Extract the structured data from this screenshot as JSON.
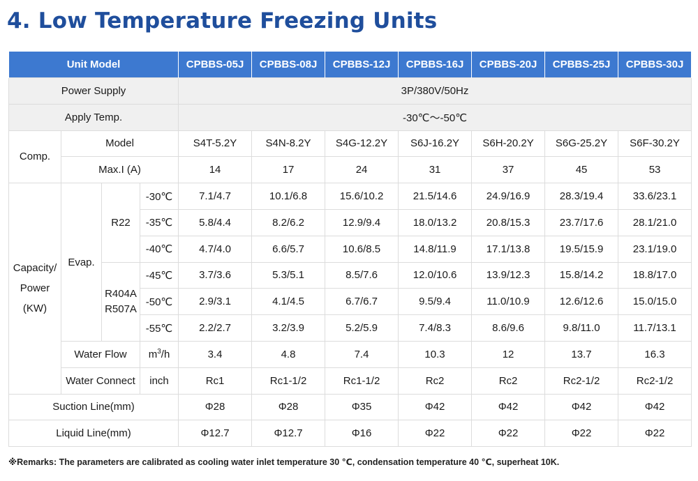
{
  "title": "4. Low Temperature Freezing Units",
  "header": {
    "unit_model": "Unit Model",
    "models": [
      "CPBBS-05J",
      "CPBBS-08J",
      "CPBBS-12J",
      "CPBBS-16J",
      "CPBBS-20J",
      "CPBBS-25J",
      "CPBBS-30J"
    ]
  },
  "power_supply": {
    "label": "Power Supply",
    "value": "3P/380V/50Hz"
  },
  "apply_temp": {
    "label": "Apply Temp.",
    "value": "-30℃～-50℃"
  },
  "comp": {
    "label": "Comp.",
    "model_label": "Model",
    "models": [
      "S4T-5.2Y",
      "S4N-8.2Y",
      "S4G-12.2Y",
      "S6J-16.2Y",
      "S6H-20.2Y",
      "S6G-25.2Y",
      "S6F-30.2Y"
    ],
    "maxi_label": "Max.I (A)",
    "maxi": [
      "14",
      "17",
      "24",
      "31",
      "37",
      "45",
      "53"
    ]
  },
  "capacity": {
    "label_line1": "Capacity/",
    "label_line2": "Power",
    "label_line3": "(KW)",
    "evap_label": "Evap.",
    "r22_label": "R22",
    "r404_line1": "R404A",
    "r404_line2": "R507A",
    "rows": [
      {
        "temp": "-30℃",
        "values": [
          "7.1/4.7",
          "10.1/6.8",
          "15.6/10.2",
          "21.5/14.6",
          "24.9/16.9",
          "28.3/19.4",
          "33.6/23.1"
        ]
      },
      {
        "temp": "-35℃",
        "values": [
          "5.8/4.4",
          "8.2/6.2",
          "12.9/9.4",
          "18.0/13.2",
          "20.8/15.3",
          "23.7/17.6",
          "28.1/21.0"
        ]
      },
      {
        "temp": "-40℃",
        "values": [
          "4.7/4.0",
          "6.6/5.7",
          "10.6/8.5",
          "14.8/11.9",
          "17.1/13.8",
          "19.5/15.9",
          "23.1/19.0"
        ]
      },
      {
        "temp": "-45℃",
        "values": [
          "3.7/3.6",
          "5.3/5.1",
          "8.5/7.6",
          "12.0/10.6",
          "13.9/12.3",
          "15.8/14.2",
          "18.8/17.0"
        ]
      },
      {
        "temp": "-50℃",
        "values": [
          "2.9/3.1",
          "4.1/4.5",
          "6.7/6.7",
          "9.5/9.4",
          "11.0/10.9",
          "12.6/12.6",
          "15.0/15.0"
        ]
      },
      {
        "temp": "-55℃",
        "values": [
          "2.2/2.7",
          "3.2/3.9",
          "5.2/5.9",
          "7.4/8.3",
          "8.6/9.6",
          "9.8/11.0",
          "11.7/13.1"
        ]
      }
    ]
  },
  "water_flow": {
    "label": "Water Flow",
    "unit_base": "m",
    "unit_sup": "3",
    "unit_tail": "/h",
    "values": [
      "3.4",
      "4.8",
      "7.4",
      "10.3",
      "12",
      "13.7",
      "16.3"
    ]
  },
  "water_connect": {
    "label": "Water Connect",
    "unit": "inch",
    "values": [
      "Rc1",
      "Rc1-1/2",
      "Rc1-1/2",
      "Rc2",
      "Rc2",
      "Rc2-1/2",
      "Rc2-1/2"
    ]
  },
  "suction_line": {
    "label": "Suction Line(mm)",
    "values": [
      "Φ28",
      "Φ28",
      "Φ35",
      "Φ42",
      "Φ42",
      "Φ42",
      "Φ42"
    ]
  },
  "liquid_line": {
    "label": "Liquid Line(mm)",
    "values": [
      "Φ12.7",
      "Φ12.7",
      "Φ16",
      "Φ22",
      "Φ22",
      "Φ22",
      "Φ22"
    ]
  },
  "remarks": "※Remarks: The parameters are calibrated as cooling water inlet temperature 30 ℃, condensation temperature 40 ℃, superheat 10K.",
  "colors": {
    "header_bg": "#3d79d0",
    "title": "#1f4e9c",
    "shade": "#f0f0f0"
  }
}
